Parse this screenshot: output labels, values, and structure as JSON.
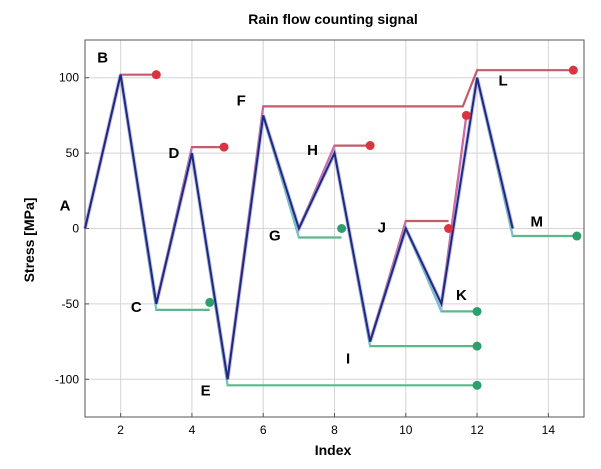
{
  "chart_data": {
    "type": "line",
    "title": "Rain flow counting signal",
    "xlabel": "Index",
    "ylabel": "Stress [MPa]",
    "xlim": [
      1,
      15
    ],
    "ylim": [
      -125,
      125
    ],
    "grid": true,
    "x_ticks": [
      2,
      4,
      6,
      8,
      10,
      12,
      14
    ],
    "y_ticks": [
      100,
      50,
      0,
      -50,
      -100
    ],
    "colors": {
      "signal": "#1f2a7a",
      "signal_shadow": "#9090e0",
      "peak_flow": "#c45a6a",
      "peak_flow_inner": "#d36fd3",
      "valley_flow": "#5cb88a",
      "valley_flow_inner": "#7ec8e8",
      "peak_marker": "#d9343f",
      "valley_marker": "#2e9e6a"
    },
    "series": [
      {
        "values": [
          {
            "label": "A",
            "x": 1,
            "y": 0
          },
          {
            "label": "B",
            "x": 2,
            "y": 102
          },
          {
            "label": "C",
            "x": 3,
            "y": -50
          },
          {
            "label": "D",
            "x": 4,
            "y": 50
          },
          {
            "label": "E",
            "x": 5,
            "y": -100
          },
          {
            "label": "F",
            "x": 6,
            "y": 75
          },
          {
            "label": "G",
            "x": 7,
            "y": 0
          },
          {
            "label": "H",
            "x": 8,
            "y": 50
          },
          {
            "label": "I",
            "x": 9,
            "y": -75
          },
          {
            "label": "J",
            "x": 10,
            "y": 0
          },
          {
            "label": "K",
            "x": 11,
            "y": -50
          },
          {
            "label": "L",
            "x": 12,
            "y": 100
          },
          {
            "label": "M",
            "x": 13,
            "y": 0
          }
        ]
      }
    ],
    "peak_flows": [
      {
        "points": [
          [
            1,
            0
          ],
          [
            2,
            102
          ],
          [
            3,
            102
          ]
        ],
        "end": [
          3,
          102
        ]
      },
      {
        "points": [
          [
            3,
            -50
          ],
          [
            4,
            54
          ],
          [
            4.9,
            54
          ]
        ],
        "end": [
          4.9,
          54
        ]
      },
      {
        "points": [
          [
            5,
            -100
          ],
          [
            6,
            81
          ],
          [
            11.6,
            81
          ],
          [
            12,
            105
          ],
          [
            14.7,
            105
          ]
        ],
        "end": [
          14.7,
          105
        ]
      },
      {
        "points": [
          [
            7,
            0
          ],
          [
            8,
            55
          ],
          [
            9.0,
            55
          ]
        ],
        "end": [
          9.0,
          55
        ]
      },
      {
        "points": [
          [
            9,
            -75
          ],
          [
            10,
            5
          ],
          [
            11.2,
            5
          ]
        ],
        "end": [
          11.2,
          0
        ]
      },
      {
        "points": [
          [
            11,
            -50
          ],
          [
            11.7,
            75
          ]
        ],
        "end": [
          11.7,
          75
        ]
      }
    ],
    "valley_flows": [
      {
        "points": [
          [
            2,
            102
          ],
          [
            3,
            -54
          ],
          [
            4.5,
            -54
          ]
        ],
        "end": [
          4.5,
          -49
        ]
      },
      {
        "points": [
          [
            4,
            50
          ],
          [
            5,
            -104
          ],
          [
            12,
            -104
          ]
        ],
        "end": [
          12,
          -104
        ]
      },
      {
        "points": [
          [
            6,
            75
          ],
          [
            7,
            -6
          ],
          [
            8.2,
            -6
          ]
        ],
        "end": [
          8.2,
          0
        ]
      },
      {
        "points": [
          [
            8,
            50
          ],
          [
            9,
            -78
          ],
          [
            12,
            -78
          ]
        ],
        "end": [
          12,
          -78
        ]
      },
      {
        "points": [
          [
            10,
            0
          ],
          [
            11,
            -55
          ],
          [
            12,
            -55
          ]
        ],
        "end": [
          12,
          -55
        ]
      },
      {
        "points": [
          [
            12,
            100
          ],
          [
            13,
            -5
          ],
          [
            14.8,
            -5
          ]
        ],
        "end": [
          14.8,
          -5
        ]
      }
    ]
  }
}
